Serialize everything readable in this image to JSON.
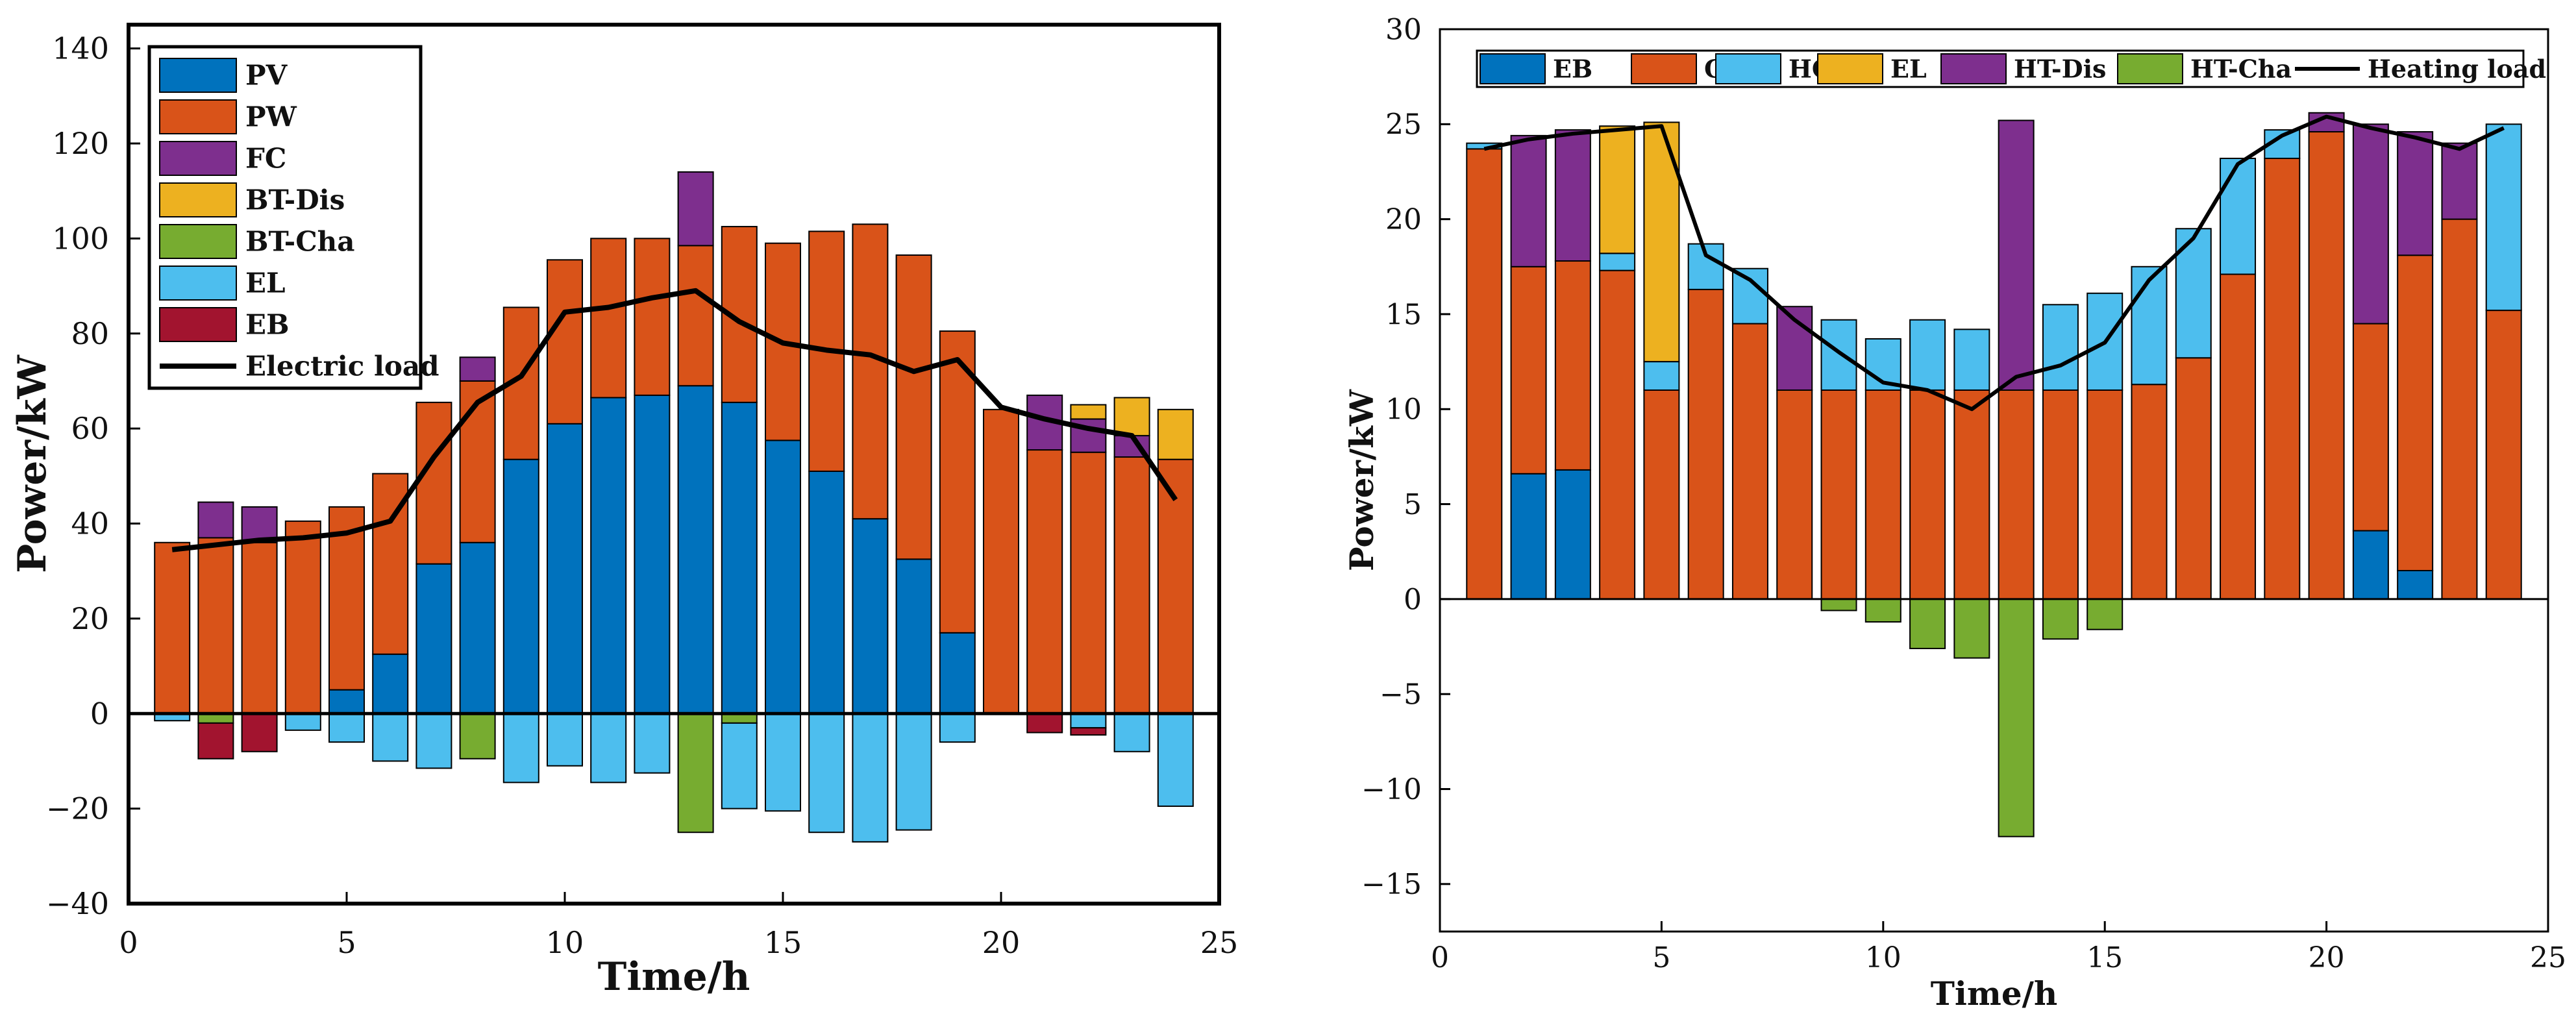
{
  "chart_data": [
    {
      "type": "bar",
      "stacked": true,
      "xlabel": "Time/h",
      "ylabel": "Power/kW",
      "xlim": [
        0,
        25
      ],
      "ylim": [
        -40,
        145
      ],
      "xticks": [
        0,
        5,
        10,
        15,
        20,
        25
      ],
      "yticks": [
        -40,
        -20,
        0,
        20,
        40,
        60,
        80,
        100,
        120,
        140
      ],
      "legend_position": "top-left",
      "grid": false,
      "x": [
        1,
        2,
        3,
        4,
        5,
        6,
        7,
        8,
        9,
        10,
        11,
        12,
        13,
        14,
        15,
        16,
        17,
        18,
        19,
        20,
        21,
        22,
        23,
        24
      ],
      "series": [
        {
          "name": "PV",
          "color": "#0072BD",
          "values": [
            0,
            0,
            0,
            0,
            5,
            12.5,
            31.5,
            36,
            53.5,
            61,
            66.5,
            67,
            69,
            65.5,
            57.5,
            51,
            41,
            32.5,
            17,
            0,
            0,
            0,
            0,
            0
          ]
        },
        {
          "name": "PW",
          "color": "#D95319",
          "values": [
            36,
            37,
            36,
            40.5,
            38.5,
            38,
            34,
            34,
            32,
            34.5,
            33.5,
            33,
            29.5,
            37,
            41.5,
            50.5,
            62,
            64,
            63.5,
            64,
            55.5,
            55,
            54,
            53.5
          ]
        },
        {
          "name": "FC",
          "color": "#7E2F8E",
          "values": [
            0,
            7.5,
            7.5,
            0,
            0,
            0,
            0,
            5,
            0,
            0,
            0,
            0,
            15.5,
            0,
            0,
            0,
            0,
            0,
            0,
            0,
            11.5,
            7,
            4.5,
            0
          ]
        },
        {
          "name": "BT-Dis",
          "color": "#EDB120",
          "values": [
            0,
            0,
            0,
            0,
            0,
            0,
            0,
            0,
            0,
            0,
            0,
            0,
            0,
            0,
            0,
            0,
            0,
            0,
            0,
            0,
            0,
            3,
            8,
            10.5
          ]
        },
        {
          "name": "BT-Cha",
          "color": "#77AC30",
          "values": [
            0,
            -2,
            0,
            0,
            0,
            0,
            0,
            -9.5,
            0,
            0,
            0,
            0,
            -25,
            -2,
            0,
            0,
            0,
            0,
            0,
            0,
            0,
            0,
            0,
            0
          ]
        },
        {
          "name": "EL",
          "color": "#4DBEEE",
          "values": [
            -1.5,
            0,
            0,
            -3.5,
            -6,
            -10,
            -11.5,
            0,
            -14.5,
            -11,
            -14.5,
            -12.5,
            0,
            -18,
            -20.5,
            -25,
            -27,
            -24.5,
            -6,
            0,
            0,
            -3,
            -8,
            -19.5
          ]
        },
        {
          "name": "EB",
          "color": "#A2142F",
          "values": [
            0,
            -7.5,
            -8,
            0,
            0,
            0,
            0,
            0,
            0,
            0,
            0,
            0,
            0,
            0,
            0,
            0,
            0,
            0,
            0,
            0,
            -4,
            -1.5,
            0,
            0
          ]
        }
      ],
      "line": {
        "name": "Electric load",
        "color": "#000000",
        "values": [
          34.5,
          35.5,
          36.5,
          37,
          38,
          40.5,
          54,
          65.5,
          71,
          84.5,
          85.5,
          87.5,
          89,
          82.5,
          78,
          76.5,
          75.5,
          72,
          74.5,
          64.5,
          62,
          60,
          58.5,
          45
        ]
      }
    },
    {
      "type": "bar",
      "stacked": true,
      "xlabel": "Time/h",
      "ylabel": "Power/kW",
      "xlim": [
        0,
        25
      ],
      "ylim": [
        -17.5,
        30
      ],
      "xticks": [
        0,
        5,
        10,
        15,
        20,
        25
      ],
      "yticks": [
        -15,
        -10,
        -5,
        0,
        5,
        10,
        15,
        20,
        25,
        30
      ],
      "legend_position": "top",
      "grid": false,
      "x": [
        1,
        2,
        3,
        4,
        5,
        6,
        7,
        8,
        9,
        10,
        11,
        12,
        13,
        14,
        15,
        16,
        17,
        18,
        19,
        20,
        21,
        22,
        23,
        24
      ],
      "series": [
        {
          "name": "EB",
          "color": "#0072BD",
          "values": [
            0,
            6.6,
            6.8,
            0,
            0,
            0,
            0,
            0,
            0,
            0,
            0,
            0,
            0,
            0,
            0,
            0,
            0,
            0,
            0,
            0,
            3.6,
            1.5,
            0,
            0
          ]
        },
        {
          "name": "GB",
          "color": "#D95319",
          "values": [
            23.7,
            10.9,
            11,
            17.3,
            11,
            16.3,
            14.5,
            11,
            11,
            11,
            11,
            11,
            11,
            11,
            11,
            11.3,
            12.7,
            17.1,
            23.2,
            24.6,
            10.9,
            16.6,
            20,
            15.2
          ]
        },
        {
          "name": "HC",
          "color": "#4DBEEE",
          "values": [
            0.3,
            0,
            0,
            0.9,
            1.5,
            2.4,
            2.9,
            0,
            3.7,
            2.7,
            3.7,
            3.2,
            0,
            4.5,
            5.1,
            6.2,
            6.8,
            6.1,
            1.5,
            0,
            0,
            0,
            0,
            9.8
          ]
        },
        {
          "name": "EL",
          "color": "#EDB120",
          "values": [
            0,
            0,
            0,
            6.7,
            12.6,
            0,
            0,
            0,
            0,
            0,
            0,
            0,
            0,
            0,
            0,
            0,
            0,
            0,
            0,
            0,
            0,
            0,
            0,
            0
          ]
        },
        {
          "name": "HT-Dis",
          "color": "#7E2F8E",
          "values": [
            0,
            6.9,
            6.9,
            0,
            0,
            0,
            0,
            4.4,
            0,
            0,
            0,
            0,
            14.2,
            0,
            0,
            0,
            0,
            0,
            0,
            1,
            10.5,
            6.5,
            4,
            0
          ]
        },
        {
          "name": "HT-Cha",
          "color": "#77AC30",
          "values": [
            0,
            0,
            0,
            0,
            0,
            0,
            0,
            0,
            -0.6,
            -1.2,
            -2.6,
            -3.1,
            -12.5,
            -2.1,
            -1.6,
            0,
            0,
            0,
            0,
            0,
            0,
            0,
            0,
            0
          ]
        }
      ],
      "line": {
        "name": "Heating load",
        "color": "#000000",
        "values": [
          23.7,
          24.2,
          24.5,
          24.7,
          24.9,
          18.1,
          16.8,
          14.7,
          13,
          11.4,
          11,
          10,
          11.7,
          12.3,
          13.5,
          16.8,
          19,
          22.9,
          24.4,
          25.4,
          24.8,
          24.3,
          23.7,
          24.8
        ]
      }
    }
  ]
}
